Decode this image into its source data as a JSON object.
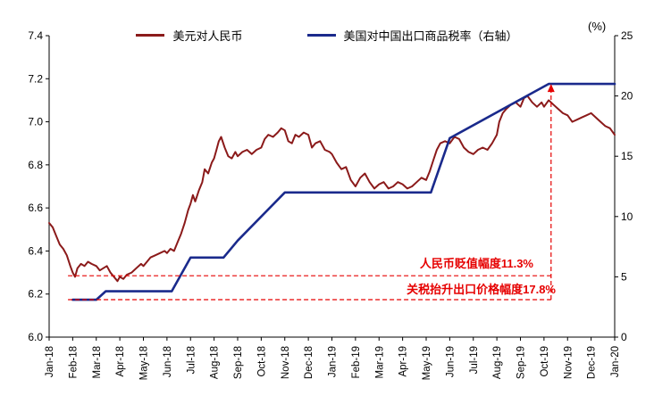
{
  "chart": {
    "percent_label": "(%)",
    "annotation_color": "#e60000",
    "legend": [
      {
        "label": "美元对人民币",
        "color": "#8b1a1a"
      },
      {
        "label": "美国对中国出口商品税率（右轴）",
        "color": "#1a2a8c"
      }
    ],
    "annotations": {
      "rmb": "人民币贬值幅度11.3%",
      "tariff": "关税抬升出口价格幅度17.8%"
    }
  },
  "chart_data": {
    "type": "line",
    "x_labels": [
      "Jan-18",
      "Feb-18",
      "Mar-18",
      "Apr-18",
      "May-18",
      "Jun-18",
      "Jul-18",
      "Aug-18",
      "Sep-18",
      "Oct-18",
      "Nov-18",
      "Dec-18",
      "Jan-19",
      "Feb-19",
      "Mar-19",
      "Apr-19",
      "May-19",
      "Jun-19",
      "Jul-19",
      "Aug-19",
      "Sep-19",
      "Oct-19",
      "Nov-19",
      "Dec-19",
      "Jan-20"
    ],
    "left_axis": {
      "min": 6.0,
      "max": 7.4,
      "ticks": [
        "6.0",
        "6.2",
        "6.4",
        "6.6",
        "6.8",
        "7.0",
        "7.2",
        "7.4"
      ]
    },
    "right_axis": {
      "min": 0,
      "max": 25,
      "ticks": [
        "0",
        "5",
        "10",
        "15",
        "20",
        "25"
      ]
    },
    "grid": false,
    "legend_position": "top-center",
    "series": [
      {
        "id": "usdcny-line",
        "name": "美元对人民币",
        "axis": "left",
        "color": "#8b1a1a",
        "width": 2,
        "points": [
          [
            0,
            6.53
          ],
          [
            0.15,
            6.51
          ],
          [
            0.3,
            6.47
          ],
          [
            0.45,
            6.43
          ],
          [
            0.6,
            6.41
          ],
          [
            0.75,
            6.38
          ],
          [
            0.9,
            6.33
          ],
          [
            1.0,
            6.3
          ],
          [
            1.1,
            6.28
          ],
          [
            1.2,
            6.32
          ],
          [
            1.35,
            6.34
          ],
          [
            1.5,
            6.33
          ],
          [
            1.65,
            6.35
          ],
          [
            1.8,
            6.34
          ],
          [
            2.0,
            6.33
          ],
          [
            2.15,
            6.31
          ],
          [
            2.3,
            6.32
          ],
          [
            2.45,
            6.33
          ],
          [
            2.6,
            6.3
          ],
          [
            2.75,
            6.28
          ],
          [
            2.9,
            6.26
          ],
          [
            3.0,
            6.28
          ],
          [
            3.15,
            6.27
          ],
          [
            3.3,
            6.29
          ],
          [
            3.5,
            6.3
          ],
          [
            3.7,
            6.32
          ],
          [
            3.9,
            6.34
          ],
          [
            4.0,
            6.33
          ],
          [
            4.15,
            6.35
          ],
          [
            4.3,
            6.37
          ],
          [
            4.5,
            6.38
          ],
          [
            4.7,
            6.39
          ],
          [
            4.9,
            6.4
          ],
          [
            5.0,
            6.39
          ],
          [
            5.15,
            6.41
          ],
          [
            5.3,
            6.4
          ],
          [
            5.45,
            6.44
          ],
          [
            5.6,
            6.48
          ],
          [
            5.75,
            6.53
          ],
          [
            5.9,
            6.59
          ],
          [
            6.0,
            6.62
          ],
          [
            6.1,
            6.66
          ],
          [
            6.2,
            6.63
          ],
          [
            6.35,
            6.68
          ],
          [
            6.5,
            6.72
          ],
          [
            6.6,
            6.78
          ],
          [
            6.75,
            6.76
          ],
          [
            6.9,
            6.81
          ],
          [
            7.0,
            6.83
          ],
          [
            7.1,
            6.87
          ],
          [
            7.2,
            6.91
          ],
          [
            7.3,
            6.93
          ],
          [
            7.45,
            6.88
          ],
          [
            7.6,
            6.84
          ],
          [
            7.75,
            6.83
          ],
          [
            7.9,
            6.86
          ],
          [
            8.0,
            6.84
          ],
          [
            8.2,
            6.86
          ],
          [
            8.4,
            6.87
          ],
          [
            8.6,
            6.85
          ],
          [
            8.8,
            6.87
          ],
          [
            9.0,
            6.88
          ],
          [
            9.15,
            6.92
          ],
          [
            9.3,
            6.94
          ],
          [
            9.5,
            6.93
          ],
          [
            9.7,
            6.95
          ],
          [
            9.85,
            6.97
          ],
          [
            10.0,
            6.96
          ],
          [
            10.15,
            6.91
          ],
          [
            10.3,
            6.9
          ],
          [
            10.45,
            6.94
          ],
          [
            10.6,
            6.93
          ],
          [
            10.8,
            6.95
          ],
          [
            11.0,
            6.94
          ],
          [
            11.15,
            6.88
          ],
          [
            11.3,
            6.9
          ],
          [
            11.5,
            6.91
          ],
          [
            11.7,
            6.87
          ],
          [
            11.9,
            6.86
          ],
          [
            12.0,
            6.85
          ],
          [
            12.2,
            6.81
          ],
          [
            12.4,
            6.78
          ],
          [
            12.6,
            6.79
          ],
          [
            12.8,
            6.73
          ],
          [
            13.0,
            6.7
          ],
          [
            13.2,
            6.74
          ],
          [
            13.4,
            6.76
          ],
          [
            13.6,
            6.72
          ],
          [
            13.8,
            6.69
          ],
          [
            14.0,
            6.71
          ],
          [
            14.2,
            6.72
          ],
          [
            14.4,
            6.69
          ],
          [
            14.6,
            6.7
          ],
          [
            14.8,
            6.72
          ],
          [
            15.0,
            6.71
          ],
          [
            15.2,
            6.69
          ],
          [
            15.4,
            6.7
          ],
          [
            15.6,
            6.72
          ],
          [
            15.8,
            6.74
          ],
          [
            16.0,
            6.73
          ],
          [
            16.15,
            6.77
          ],
          [
            16.3,
            6.82
          ],
          [
            16.45,
            6.87
          ],
          [
            16.6,
            6.9
          ],
          [
            16.8,
            6.91
          ],
          [
            17.0,
            6.9
          ],
          [
            17.2,
            6.93
          ],
          [
            17.4,
            6.92
          ],
          [
            17.6,
            6.88
          ],
          [
            17.8,
            6.86
          ],
          [
            18.0,
            6.85
          ],
          [
            18.2,
            6.87
          ],
          [
            18.4,
            6.88
          ],
          [
            18.6,
            6.87
          ],
          [
            18.8,
            6.9
          ],
          [
            19.0,
            6.94
          ],
          [
            19.1,
            7.0
          ],
          [
            19.25,
            7.04
          ],
          [
            19.4,
            7.06
          ],
          [
            19.6,
            7.08
          ],
          [
            19.8,
            7.09
          ],
          [
            20.0,
            7.07
          ],
          [
            20.15,
            7.11
          ],
          [
            20.3,
            7.12
          ],
          [
            20.5,
            7.09
          ],
          [
            20.7,
            7.07
          ],
          [
            20.9,
            7.09
          ],
          [
            21.0,
            7.07
          ],
          [
            21.2,
            7.1
          ],
          [
            21.4,
            7.08
          ],
          [
            21.6,
            7.06
          ],
          [
            21.8,
            7.04
          ],
          [
            22.0,
            7.03
          ],
          [
            22.2,
            7.0
          ],
          [
            22.4,
            7.01
          ],
          [
            22.6,
            7.02
          ],
          [
            22.8,
            7.03
          ],
          [
            23.0,
            7.04
          ],
          [
            23.2,
            7.02
          ],
          [
            23.4,
            7.0
          ],
          [
            23.6,
            6.98
          ],
          [
            23.8,
            6.97
          ],
          [
            24.0,
            6.94
          ]
        ]
      },
      {
        "id": "tariff-line",
        "name": "美国对中国出口商品税率（右轴）",
        "axis": "right",
        "color": "#1a2a8c",
        "width": 2.6,
        "points": [
          [
            1.0,
            3.1
          ],
          [
            2.0,
            3.1
          ],
          [
            2.4,
            3.8
          ],
          [
            5.2,
            3.8
          ],
          [
            6.0,
            6.6
          ],
          [
            7.4,
            6.6
          ],
          [
            8.0,
            8.0
          ],
          [
            10.0,
            12.0
          ],
          [
            16.2,
            12.0
          ],
          [
            17.0,
            16.5
          ],
          [
            21.2,
            21.0
          ],
          [
            24.0,
            21.0
          ]
        ]
      }
    ],
    "annotation_lines": {
      "h1_value": 6.285,
      "h2_value": 6.174,
      "x_start": 0.8,
      "x_end": 21.3,
      "arrow_to_value": 21
    }
  }
}
